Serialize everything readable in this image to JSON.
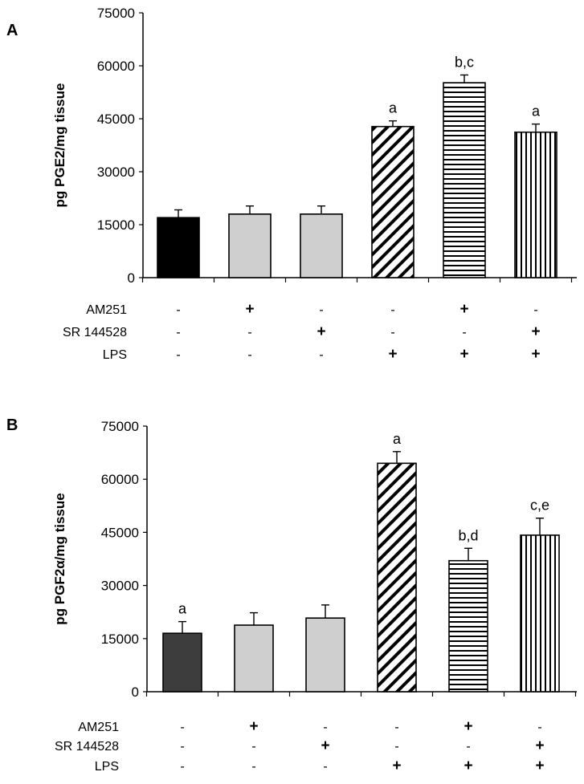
{
  "chart_data": [
    {
      "panel": "A",
      "type": "bar",
      "ylabel": "pg PGE2/mg tissue",
      "ylim": [
        0,
        75000
      ],
      "yticks": [
        "75000",
        "60000",
        "45000",
        "30000",
        "15000",
        "0"
      ],
      "values": [
        17000,
        18000,
        18000,
        42800,
        55200,
        41200
      ],
      "errors": [
        2200,
        2300,
        2300,
        1600,
        2200,
        2300
      ],
      "annotations": [
        "",
        "",
        "",
        "a",
        "b,c",
        "a"
      ],
      "fills": [
        "solid-black",
        "solid-light-gray",
        "solid-light-gray",
        "diagonal-hatch",
        "horizontal-stripes",
        "vertical-stripes"
      ],
      "treatment_rows": [
        {
          "label": "AM251",
          "signs": [
            "-",
            "+",
            "-",
            "-",
            "+",
            "-"
          ]
        },
        {
          "label": "SR 144528",
          "signs": [
            "-",
            "-",
            "+",
            "-",
            "-",
            "+"
          ]
        },
        {
          "label": "LPS",
          "signs": [
            "-",
            "-",
            "-",
            "+",
            "+",
            "+"
          ]
        }
      ]
    },
    {
      "panel": "B",
      "type": "bar",
      "ylabel": "pg PGF2α/mg tissue",
      "ylim": [
        0,
        75000
      ],
      "yticks": [
        "75000",
        "60000",
        "45000",
        "30000",
        "15000",
        "0"
      ],
      "values": [
        16500,
        18800,
        20800,
        64500,
        37000,
        44200
      ],
      "errors": [
        3300,
        3500,
        3700,
        3300,
        3500,
        4800
      ],
      "annotations": [
        "a",
        "",
        "",
        "a",
        "b,d",
        "c,e"
      ],
      "fills": [
        "solid-dark-gray",
        "solid-light-gray",
        "solid-light-gray",
        "diagonal-hatch",
        "horizontal-stripes",
        "vertical-stripes"
      ],
      "treatment_rows": [
        {
          "label": "AM251",
          "signs": [
            "-",
            "+",
            "-",
            "-",
            "+",
            "-"
          ]
        },
        {
          "label": "SR 144528",
          "signs": [
            "-",
            "-",
            "+",
            "-",
            "-",
            "+"
          ]
        },
        {
          "label": "LPS",
          "signs": [
            "-",
            "-",
            "-",
            "+",
            "+",
            "+"
          ]
        }
      ]
    }
  ],
  "colors": {
    "black": "#000000",
    "dark_gray": "#3d3d3d",
    "light_gray": "#cfcfcf"
  }
}
